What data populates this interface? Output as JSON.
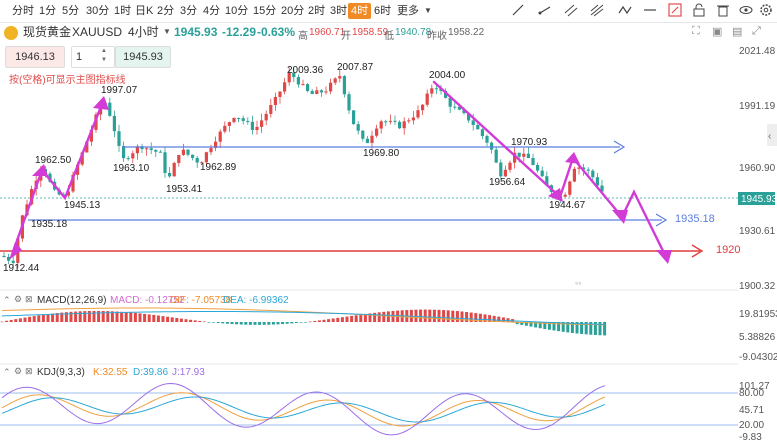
{
  "toolbar": {
    "timeframes": [
      "分时",
      "1分",
      "5分",
      "30分",
      "1时",
      "日K",
      "2分",
      "3分",
      "4分",
      "10分",
      "15分",
      "20分",
      "2时",
      "3时",
      "4时",
      "6时",
      "更多"
    ],
    "active_timeframe": "4时"
  },
  "symbol": {
    "name": "现货黄金",
    "code": "XAUUSD",
    "period": "4小时",
    "price": "1945.93",
    "change": "-12.29",
    "change_pct": "-0.63%",
    "high_label": "高",
    "high": "1960.71",
    "open_label": "开",
    "open": "1958.59",
    "low_label": "低",
    "low": "1940.78",
    "prev_label": "昨收",
    "prev": "1958.22"
  },
  "order": {
    "bid": "1946.13",
    "qty": "1",
    "ask": "1945.93"
  },
  "hint": "按(空格)可显示主图指标线",
  "price_axis": [
    "2021.48",
    "1991.19",
    "1960.90",
    "1930.61",
    "1900.32"
  ],
  "current_price_tag": "1945.93",
  "annotations": [
    "1912.44",
    "1935.18",
    "1962.50",
    "1945.13",
    "1997.07",
    "1963.10",
    "1953.41",
    "1962.89",
    "2009.36",
    "2007.87",
    "1969.80",
    "2004.00",
    "1970.93",
    "1956.64",
    "1944.67"
  ],
  "levels": [
    {
      "label": "1935.18",
      "color": "#5b7fe0"
    },
    {
      "label": "1920",
      "color": "#e03c3c"
    }
  ],
  "macd": {
    "title": "MACD(12,26,9)",
    "macd": "MACD: -0.12752",
    "dif": "DIF: -7.05738",
    "dea": "DEA: -6.99362",
    "axis": [
      "19.81953",
      "5.38826",
      "-9.04302"
    ]
  },
  "kdj": {
    "title": "KDJ(9,3,3)",
    "k": "K:32.55",
    "d": "D:39.86",
    "j": "J:17.93",
    "axis": [
      "101.27",
      "80.00",
      "45.71",
      "20.00",
      "-9.83"
    ]
  },
  "colors": {
    "up": "#e04848",
    "down": "#2aa198",
    "accent": "#f08a24",
    "arrow": "#d23bd6"
  }
}
